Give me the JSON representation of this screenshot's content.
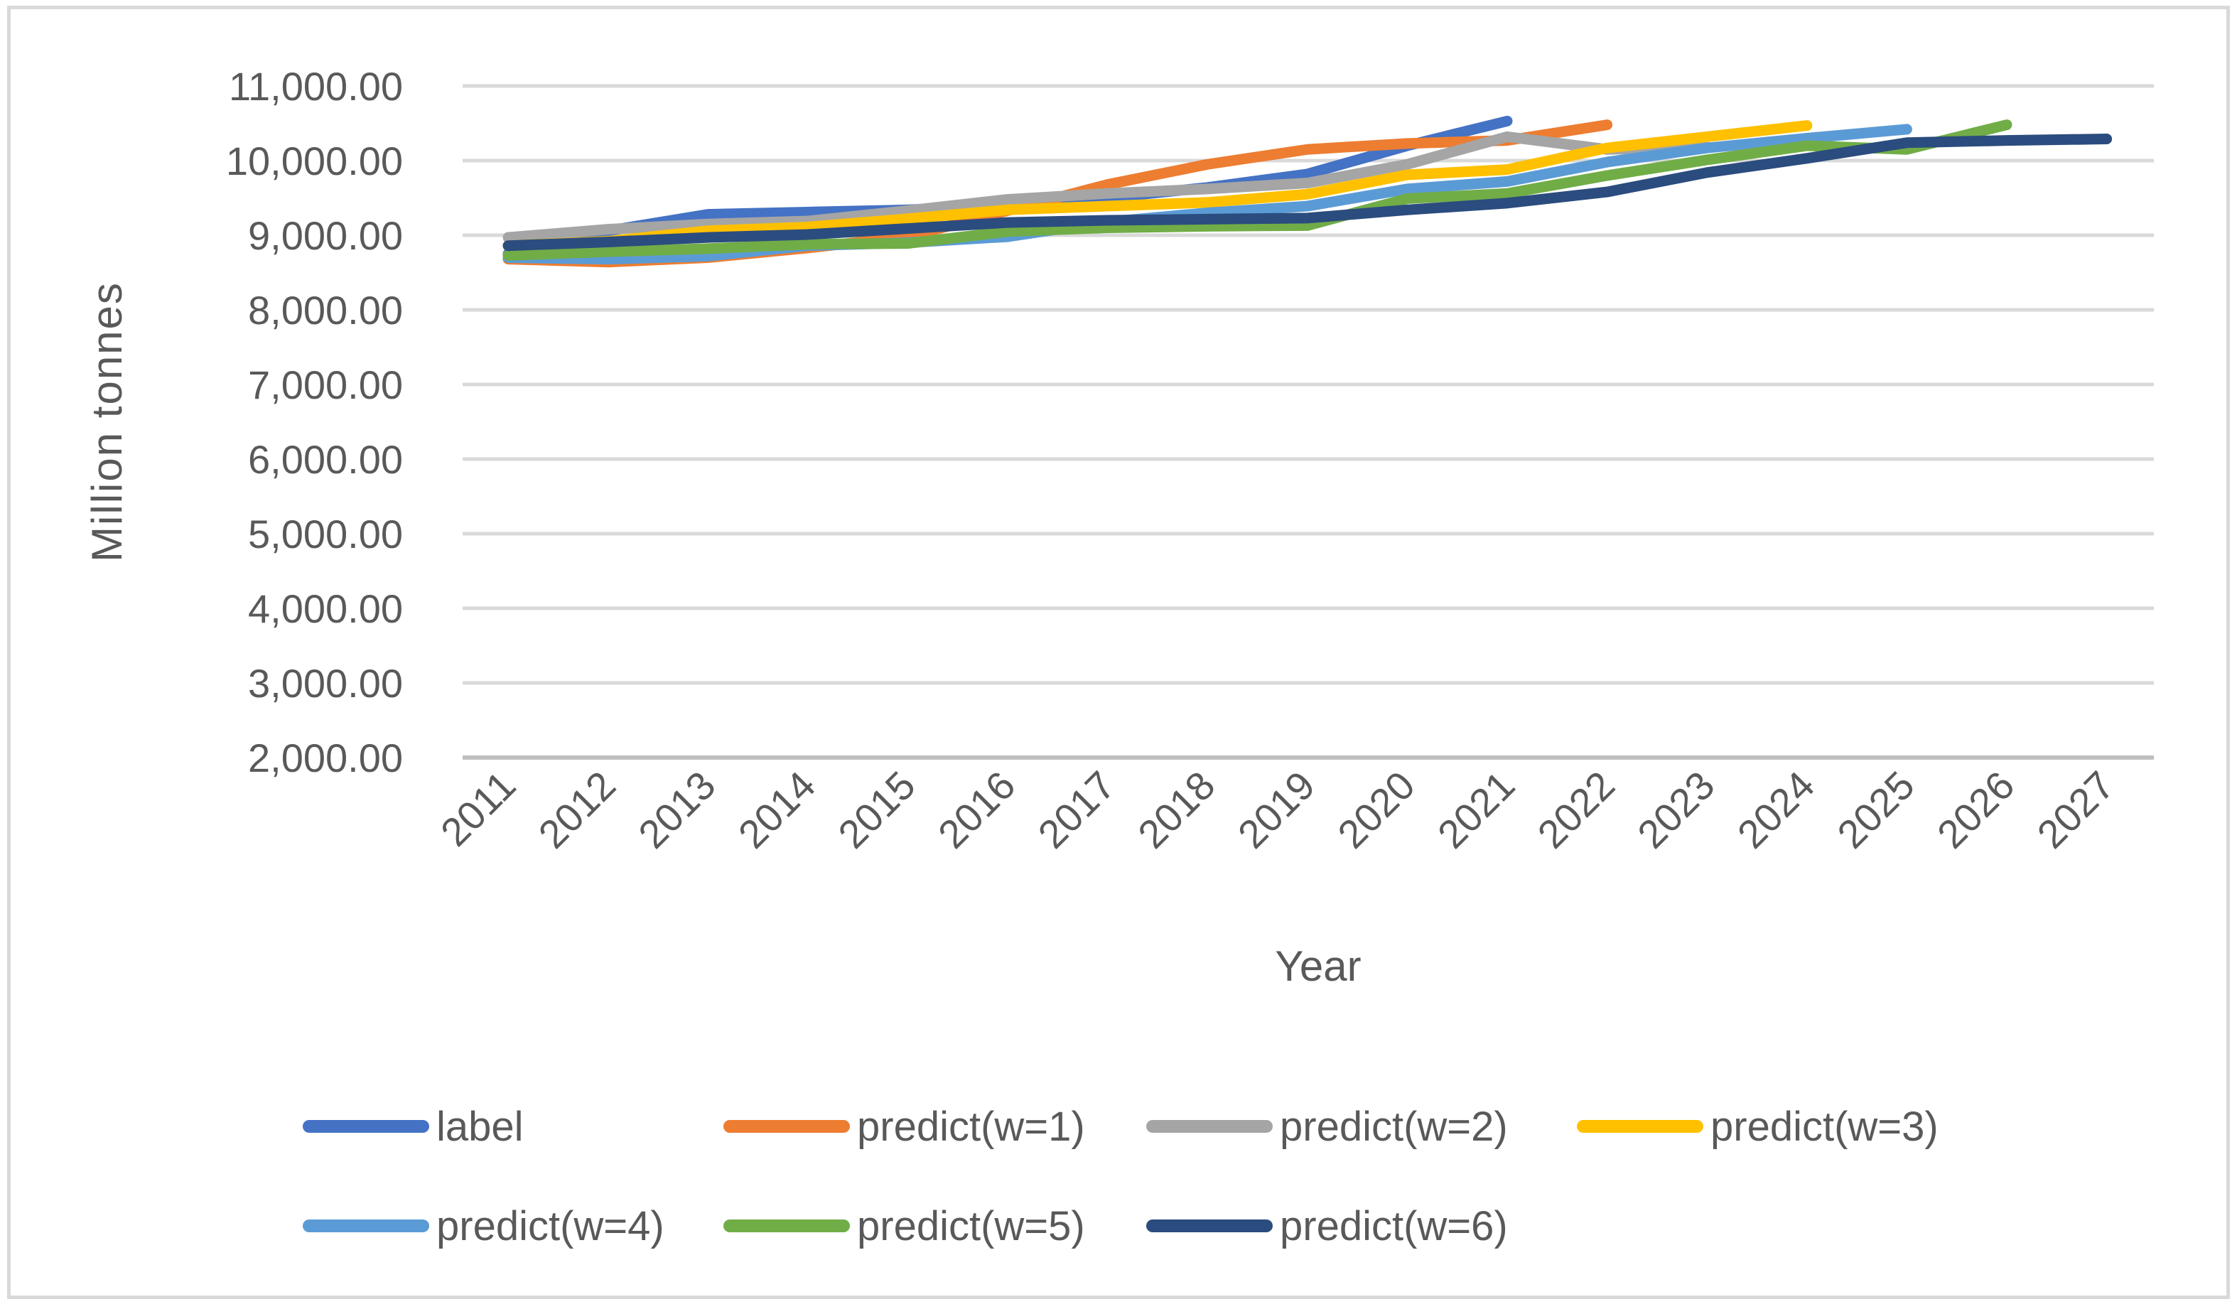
{
  "chart_data": {
    "type": "line",
    "title": "",
    "xlabel": "Year",
    "ylabel": "Million  tonnes",
    "categories": [
      2011,
      2012,
      2013,
      2014,
      2015,
      2016,
      2017,
      2018,
      2019,
      2020,
      2021,
      2022,
      2023,
      2024,
      2025,
      2026,
      2027
    ],
    "ylim": [
      2000,
      11000
    ],
    "y_tick_step": 1000,
    "y_ticks": [
      {
        "value": 2000,
        "label": "2,000.00"
      },
      {
        "value": 3000,
        "label": "3,000.00"
      },
      {
        "value": 4000,
        "label": "4,000.00"
      },
      {
        "value": 5000,
        "label": "5,000.00"
      },
      {
        "value": 6000,
        "label": "6,000.00"
      },
      {
        "value": 7000,
        "label": "7,000.00"
      },
      {
        "value": 8000,
        "label": "8,000.00"
      },
      {
        "value": 9000,
        "label": "9,000.00"
      },
      {
        "value": 10000,
        "label": "10,000.00"
      },
      {
        "value": 11000,
        "label": "11,000.00"
      }
    ],
    "grid": "horizontal",
    "legend_position": "bottom",
    "colors": {
      "grid": "#D9D9D9",
      "axis_line": "#BFBFBF",
      "text": "#595959"
    },
    "series": [
      {
        "id": "label",
        "name": "label",
        "color": "#4472C4",
        "start_year": 2011,
        "values": [
          8750,
          9060,
          9280,
          9310,
          9340,
          9390,
          9500,
          9640,
          9820,
          10200,
          10530
        ]
      },
      {
        "id": "predict-w1",
        "name": "predict(w=1)",
        "color": "#ED7D31",
        "start_year": 2011,
        "values": [
          8680,
          8640,
          8700,
          8830,
          8980,
          9330,
          9680,
          9950,
          10150,
          10230,
          10270,
          10480
        ]
      },
      {
        "id": "predict-w2",
        "name": "predict(w=2)",
        "color": "#A5A5A5",
        "start_year": 2011,
        "values": [
          8970,
          9080,
          9150,
          9190,
          9330,
          9480,
          9560,
          9620,
          9700,
          9950,
          10320,
          10150,
          10180
        ]
      },
      {
        "id": "predict-w3",
        "name": "predict(w=3)",
        "color": "#FFC000",
        "start_year": 2011,
        "values": [
          8860,
          8920,
          9060,
          9110,
          9220,
          9340,
          9390,
          9440,
          9550,
          9810,
          9880,
          10170,
          10320,
          10470
        ]
      },
      {
        "id": "predict-w4",
        "name": "predict(w=4)",
        "color": "#5B9BD5",
        "start_year": 2011,
        "values": [
          8700,
          8680,
          8720,
          8860,
          8900,
          8980,
          9180,
          9300,
          9390,
          9620,
          9720,
          9980,
          10170,
          10300,
          10420
        ]
      },
      {
        "id": "predict-w5",
        "name": "predict(w=5)",
        "color": "#70AD47",
        "start_year": 2011,
        "values": [
          8730,
          8780,
          8820,
          8880,
          8890,
          9050,
          9100,
          9120,
          9130,
          9490,
          9560,
          9800,
          10010,
          10200,
          10150,
          10480
        ]
      },
      {
        "id": "predict-w6",
        "name": "predict(w=6)",
        "color": "#2B4C7E",
        "start_year": 2011,
        "values": [
          8860,
          8910,
          8970,
          9010,
          9090,
          9170,
          9200,
          9215,
          9230,
          9340,
          9430,
          9580,
          9840,
          10030,
          10240,
          10270,
          10290
        ]
      }
    ]
  },
  "legend": {
    "items": [
      {
        "label": "label",
        "color": "#4472C4"
      },
      {
        "label": "predict(w=1)",
        "color": "#ED7D31"
      },
      {
        "label": "predict(w=2)",
        "color": "#A5A5A5"
      },
      {
        "label": "predict(w=3)",
        "color": "#FFC000"
      },
      {
        "label": "predict(w=4)",
        "color": "#5B9BD5"
      },
      {
        "label": "predict(w=5)",
        "color": "#70AD47"
      },
      {
        "label": "predict(w=6)",
        "color": "#2B4C7E"
      }
    ]
  },
  "axes": {
    "x_title": "Year",
    "y_title": "Million  tonnes"
  }
}
